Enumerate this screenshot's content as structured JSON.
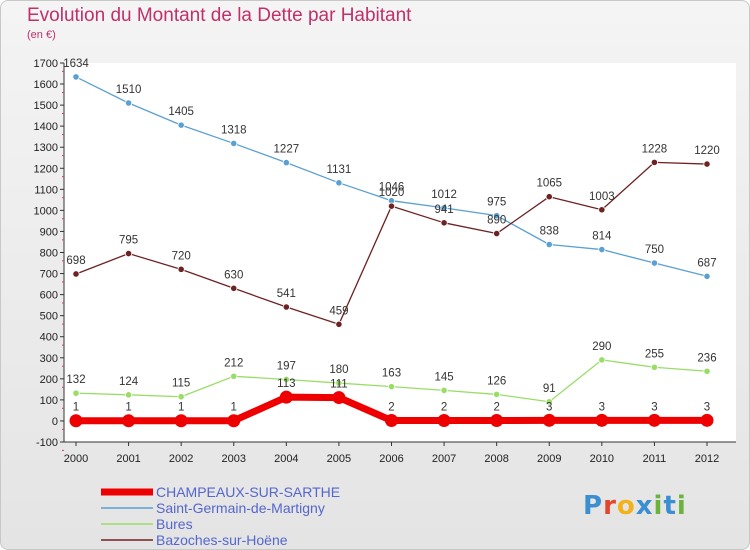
{
  "title": "Evolution du Montant de la Dette par Habitant",
  "subtitle": "(en €)",
  "logo": {
    "letters": [
      "P",
      "r",
      "o",
      "x",
      "i",
      "t",
      "i"
    ],
    "colors": [
      "#3b8fd0",
      "#e2472e",
      "#f2b21b",
      "#3b8fd0",
      "#6bb33c",
      "#3b8fd0",
      "#6bb33c"
    ]
  },
  "chart_data": {
    "type": "line",
    "title": "Evolution du Montant de la Dette par Habitant",
    "subtitle": "(en €)",
    "x": [
      "2000",
      "2001",
      "2002",
      "2003",
      "2004",
      "2005",
      "2006",
      "2007",
      "2008",
      "2009",
      "2010",
      "2011",
      "2012"
    ],
    "ylim": [
      -100,
      1700
    ],
    "yticks": [
      -100,
      0,
      100,
      200,
      300,
      400,
      500,
      600,
      700,
      800,
      900,
      1000,
      1100,
      1200,
      1300,
      1400,
      1500,
      1600,
      1700
    ],
    "grid": false,
    "legend_position": "bottom-left",
    "series": [
      {
        "name": "Saint-Germain-de-Martigny",
        "color": "#5aa0d2",
        "values": [
          1634,
          1510,
          1405,
          1318,
          1227,
          1131,
          1046,
          1012,
          975,
          838,
          814,
          750,
          687
        ]
      },
      {
        "name": "Bazoches-sur-Hoëne",
        "color": "#6e2222",
        "values": [
          698,
          795,
          720,
          630,
          541,
          459,
          1020,
          941,
          890,
          1065,
          1003,
          1228,
          1220
        ]
      },
      {
        "name": "Bures",
        "color": "#99dd66",
        "values": [
          132,
          124,
          115,
          212,
          197,
          180,
          163,
          145,
          126,
          91,
          290,
          255,
          236
        ]
      },
      {
        "name": "CHAMPEAUX-SUR-SARTHE",
        "color": "#ee0000",
        "values": [
          1,
          1,
          1,
          1,
          113,
          111,
          2,
          2,
          2,
          3,
          3,
          3,
          3
        ],
        "labels": [
          "1",
          "1",
          "1",
          "1",
          "113",
          "111",
          "2",
          "2",
          "2",
          "3",
          "3",
          "3",
          "3"
        ]
      }
    ],
    "legend": [
      "CHAMPEAUX-SUR-SARTHE",
      "Saint-Germain-de-Martigny",
      "Bures",
      "Bazoches-sur-Hoëne"
    ]
  }
}
